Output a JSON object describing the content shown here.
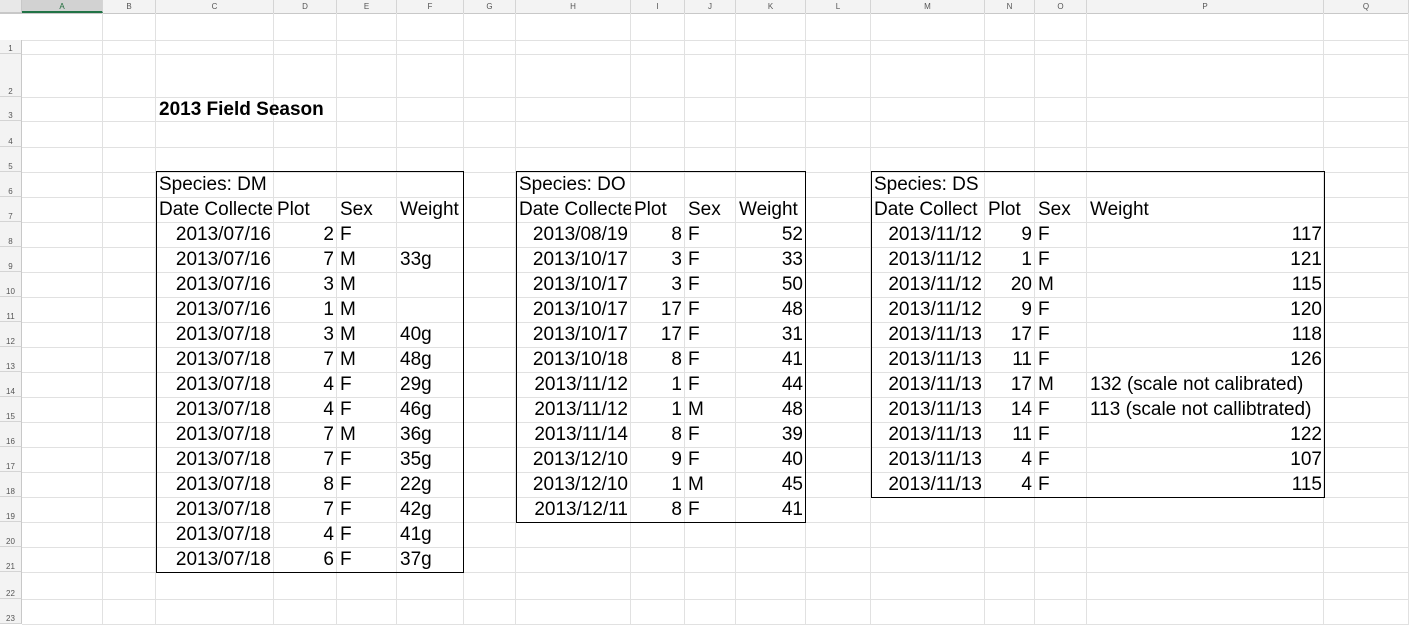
{
  "columns": [
    "A",
    "B",
    "C",
    "D",
    "E",
    "F",
    "G",
    "H",
    "I",
    "J",
    "K",
    "L",
    "M",
    "N",
    "O",
    "P",
    "Q"
  ],
  "rows": [
    "1",
    "2",
    "3",
    "4",
    "5",
    "6",
    "7",
    "8",
    "9",
    "10",
    "11",
    "12",
    "13",
    "14",
    "15",
    "16",
    "17",
    "18",
    "19",
    "20",
    "21",
    "22",
    "23"
  ],
  "title": "2013 Field Season",
  "tables": [
    {
      "species": "Species: DM",
      "headers": [
        "Date Collecte",
        "Plot",
        "Sex",
        "Weight"
      ],
      "rows": [
        [
          "2013/07/16",
          "2",
          "F",
          ""
        ],
        [
          "2013/07/16",
          "7",
          "M",
          "33g"
        ],
        [
          "2013/07/16",
          "3",
          "M",
          ""
        ],
        [
          "2013/07/16",
          "1",
          "M",
          ""
        ],
        [
          "2013/07/18",
          "3",
          "M",
          "40g"
        ],
        [
          "2013/07/18",
          "7",
          "M",
          "48g"
        ],
        [
          "2013/07/18",
          "4",
          "F",
          "29g"
        ],
        [
          "2013/07/18",
          "4",
          "F",
          "46g"
        ],
        [
          "2013/07/18",
          "7",
          "M",
          "36g"
        ],
        [
          "2013/07/18",
          "7",
          "F",
          "35g"
        ],
        [
          "2013/07/18",
          "8",
          "F",
          "22g"
        ],
        [
          "2013/07/18",
          "7",
          "F",
          "42g"
        ],
        [
          "2013/07/18",
          "4",
          "F",
          "41g"
        ],
        [
          "2013/07/18",
          "6",
          "F",
          "37g"
        ]
      ]
    },
    {
      "species": "Species: DO",
      "headers": [
        "Date Collecte",
        "Plot",
        "Sex",
        "Weight"
      ],
      "rows": [
        [
          "2013/08/19",
          "8",
          "F",
          "52"
        ],
        [
          "2013/10/17",
          "3",
          "F",
          "33"
        ],
        [
          "2013/10/17",
          "3",
          "F",
          "50"
        ],
        [
          "2013/10/17",
          "17",
          "F",
          "48"
        ],
        [
          "2013/10/17",
          "17",
          "F",
          "31"
        ],
        [
          "2013/10/18",
          "8",
          "F",
          "41"
        ],
        [
          "2013/11/12",
          "1",
          "F",
          "44"
        ],
        [
          "2013/11/12",
          "1",
          "M",
          "48"
        ],
        [
          "2013/11/14",
          "8",
          "F",
          "39"
        ],
        [
          "2013/12/10",
          "9",
          "F",
          "40"
        ],
        [
          "2013/12/10",
          "1",
          "M",
          "45"
        ],
        [
          "2013/12/11",
          "8",
          "F",
          "41"
        ]
      ]
    },
    {
      "species": "Species: DS",
      "headers": [
        "Date Collect",
        "Plot",
        "Sex",
        "Weight"
      ],
      "rows": [
        [
          "2013/11/12",
          "9",
          "F",
          "117"
        ],
        [
          "2013/11/12",
          "1",
          "F",
          "121"
        ],
        [
          "2013/11/12",
          "20",
          "M",
          "115"
        ],
        [
          "2013/11/12",
          "9",
          "F",
          "120"
        ],
        [
          "2013/11/13",
          "17",
          "F",
          "118"
        ],
        [
          "2013/11/13",
          "11",
          "F",
          "126"
        ],
        [
          "2013/11/13",
          "17",
          "M",
          "132 (scale not calibrated)"
        ],
        [
          "2013/11/13",
          "14",
          "F",
          "113 (scale not callibtrated)"
        ],
        [
          "2013/11/13",
          "11",
          "F",
          "122"
        ],
        [
          "2013/11/13",
          "4",
          "F",
          "107"
        ],
        [
          "2013/11/13",
          "4",
          "F",
          "115"
        ]
      ]
    }
  ]
}
